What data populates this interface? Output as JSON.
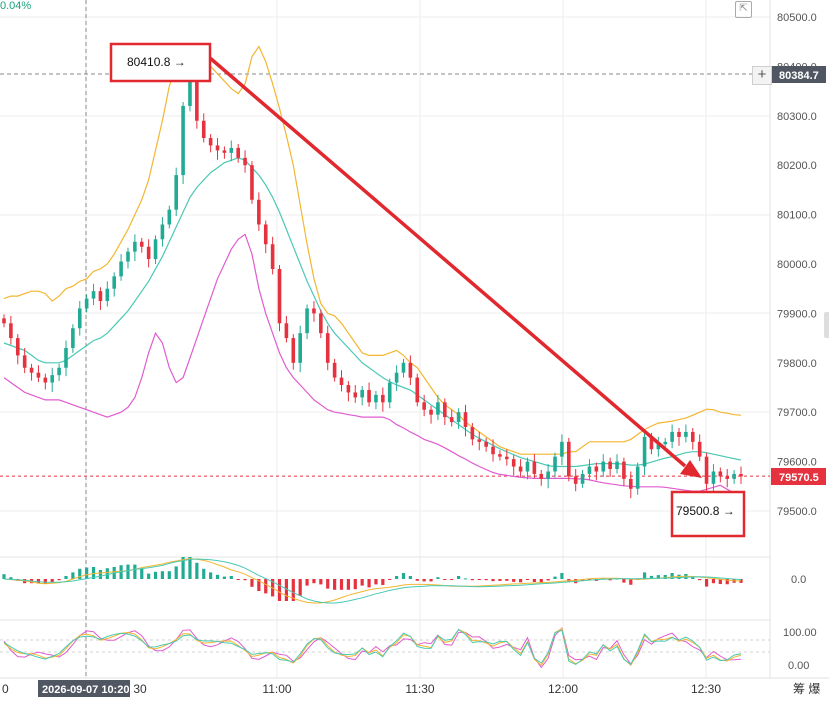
{
  "change_label": "0.04%",
  "crosshair": {
    "price_label": "80384.7",
    "time_label": "2026-09-07 10:20"
  },
  "last_price": {
    "label": "79570.5",
    "value": 79570.5,
    "color": "#e5323e"
  },
  "colors": {
    "up": "#22ab94",
    "down": "#e5323e",
    "upper_band": "#f2b630",
    "mid_band": "#49c9b4",
    "lower_band": "#e05bd0",
    "annotation": "#e0282e"
  },
  "icons": {
    "expand": "expand-icon",
    "add": "plus-icon"
  },
  "annotations": {
    "high_label": "80410.8 →",
    "low_label": "79500.8 →"
  },
  "bottom_right_text": "筹 爆",
  "chart_data": {
    "type": "candlestick",
    "price_axis": {
      "range": [
        79420,
        80560
      ],
      "ticks": [
        "80500.0",
        "80400.0",
        "80300.0",
        "80200.0",
        "80100.0",
        "80000.0",
        "79900.0",
        "79800.0",
        "79700.0",
        "79600.0",
        "79500.0"
      ]
    },
    "time_axis": {
      "ticks": [
        "0",
        "30",
        "11:00",
        "11:30",
        "12:00",
        "12:30"
      ]
    },
    "macd_axis": {
      "ticks": [
        "0.0"
      ]
    },
    "osc_axis": {
      "ticks": [
        "100.00",
        "0.00"
      ]
    },
    "price_high_marked": 80410.8,
    "price_low_marked": 79500.8,
    "series": {
      "close": [
        79880,
        79850,
        79815,
        79790,
        79780,
        79770,
        79760,
        79775,
        79790,
        79830,
        79870,
        79910,
        79930,
        79945,
        79925,
        79950,
        79975,
        80005,
        80025,
        80045,
        80035,
        80010,
        80050,
        80080,
        80110,
        80180,
        80320,
        80370,
        80290,
        80255,
        80240,
        80230,
        80225,
        80235,
        80215,
        80200,
        80130,
        80080,
        80040,
        79990,
        79880,
        79850,
        79800,
        79860,
        79910,
        79900,
        79860,
        79800,
        79770,
        79755,
        79740,
        79730,
        79745,
        79720,
        79735,
        79720,
        79760,
        79780,
        79800,
        79770,
        79720,
        79705,
        79695,
        79720,
        79690,
        79680,
        79700,
        79670,
        79645,
        79640,
        79630,
        79615,
        79610,
        79605,
        79590,
        79580,
        79600,
        79575,
        79565,
        79580,
        79610,
        79640,
        79570,
        79555,
        79575,
        79590,
        79580,
        79600,
        79585,
        79600,
        79565,
        79545,
        79590,
        79650,
        79625,
        79635,
        79640,
        79660,
        79650,
        79660,
        79640,
        79610,
        79555,
        79580,
        79570,
        79565,
        79575,
        79570
      ],
      "upper_band": [
        79930,
        79935,
        79935,
        79940,
        79945,
        79945,
        79940,
        79925,
        79935,
        79950,
        79955,
        79965,
        79970,
        79985,
        79990,
        80000,
        80020,
        80045,
        80070,
        80100,
        80130,
        80170,
        80230,
        80290,
        80360,
        80400,
        80405,
        80420,
        80420,
        80415,
        80400,
        80385,
        80370,
        80355,
        80345,
        80365,
        80420,
        80440,
        80410,
        80365,
        80315,
        80260,
        80200,
        80120,
        80040,
        79970,
        79920,
        79900,
        79895,
        79880,
        79860,
        79840,
        79820,
        79815,
        79815,
        79815,
        79820,
        79825,
        79815,
        79800,
        79790,
        79770,
        79750,
        79730,
        79715,
        79705,
        79695,
        79680,
        79670,
        79660,
        79650,
        79640,
        79630,
        79625,
        79620,
        79615,
        79615,
        79615,
        79615,
        79615,
        79615,
        79615,
        79620,
        79620,
        79630,
        79640,
        79640,
        79640,
        79640,
        79640,
        79640,
        79645,
        79655,
        79665,
        79672,
        79678,
        79680,
        79682,
        79685,
        79688,
        79694,
        79700,
        79706,
        79705,
        79700,
        79698,
        79695,
        79694
      ],
      "mid_band": [
        79840,
        79835,
        79830,
        79825,
        79815,
        79805,
        79800,
        79800,
        79800,
        79805,
        79815,
        79825,
        79835,
        79845,
        79850,
        79860,
        79875,
        79890,
        79905,
        79925,
        79945,
        79965,
        79990,
        80015,
        80045,
        80075,
        80105,
        80135,
        80155,
        80170,
        80185,
        80195,
        80205,
        80210,
        80215,
        80210,
        80195,
        80180,
        80160,
        80135,
        80105,
        80070,
        80035,
        80000,
        79965,
        79935,
        79905,
        79880,
        79860,
        79845,
        79830,
        79815,
        79800,
        79790,
        79780,
        79770,
        79762,
        79755,
        79750,
        79745,
        79735,
        79725,
        79715,
        79705,
        79695,
        79685,
        79675,
        79665,
        79655,
        79647,
        79640,
        79633,
        79626,
        79620,
        79614,
        79608,
        79604,
        79600,
        79596,
        79592,
        79590,
        79590,
        79590,
        79590,
        79592,
        79594,
        79596,
        79596,
        79596,
        79596,
        79595,
        79593,
        79593,
        79595,
        79599,
        79603,
        79607,
        79610,
        79614,
        79618,
        79620,
        79620,
        79618,
        79615,
        79612,
        79609,
        79606,
        79603
      ],
      "lower_band": [
        79770,
        79760,
        79750,
        79740,
        79735,
        79730,
        79725,
        79725,
        79725,
        79720,
        79715,
        79710,
        79705,
        79700,
        79695,
        79690,
        79695,
        79700,
        79710,
        79730,
        79770,
        79820,
        79860,
        79840,
        79790,
        79760,
        79770,
        79810,
        79850,
        79890,
        79930,
        79970,
        80000,
        80030,
        80050,
        80060,
        80020,
        79950,
        79900,
        79860,
        79820,
        79790,
        79770,
        79755,
        79740,
        79725,
        79715,
        79705,
        79700,
        79698,
        79695,
        79693,
        79690,
        79690,
        79690,
        79690,
        79685,
        79675,
        79668,
        79660,
        79653,
        79645,
        79640,
        79635,
        79628,
        79620,
        79612,
        79605,
        79597,
        79590,
        79584,
        79578,
        79574,
        79572,
        79570,
        79568,
        79567,
        79566,
        79566,
        79566,
        79566,
        79566,
        79566,
        79565,
        79565,
        79563,
        79560,
        79557,
        79555,
        79553,
        79551,
        79550,
        79549,
        79549,
        79549,
        79549,
        79548,
        79546,
        79544,
        79542,
        79540,
        79540,
        79544,
        79548,
        79552,
        79544,
        79536,
        79528
      ]
    }
  }
}
